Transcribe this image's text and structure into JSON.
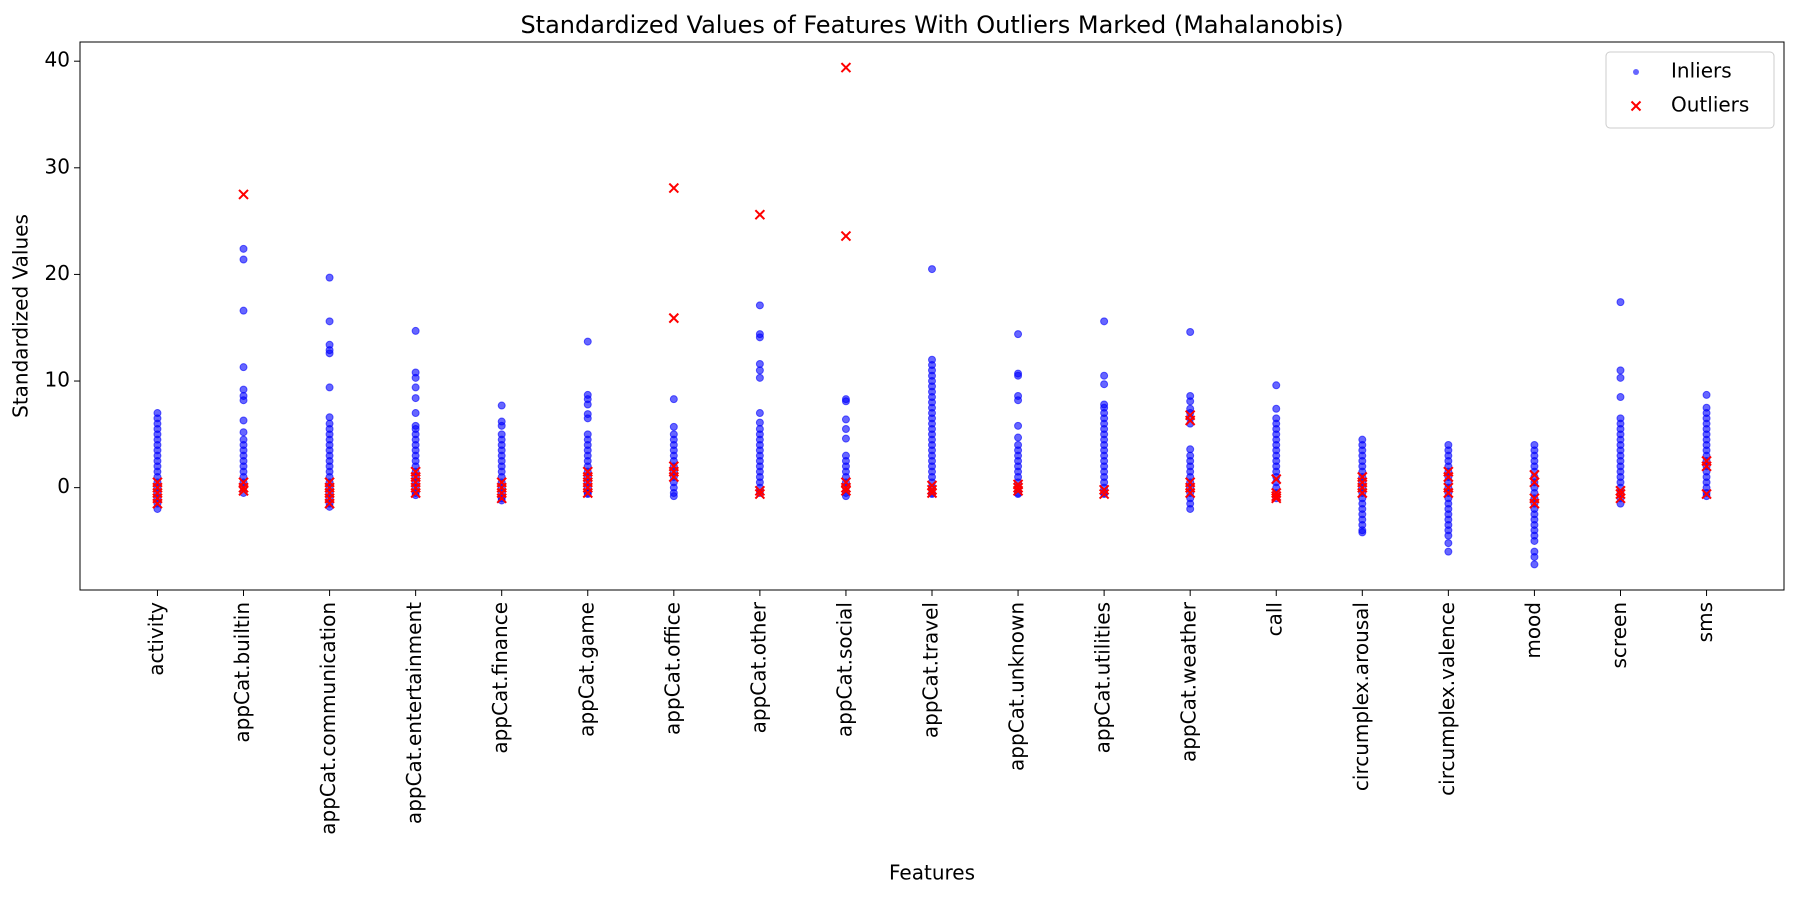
{
  "chart_data": {
    "type": "scatter",
    "title": "Standardized Values of Features With Outliers Marked (Mahalanobis)",
    "x_label": "Features",
    "y_label": "Standardized Values",
    "categories": [
      "activity",
      "appCat.builtin",
      "appCat.communication",
      "appCat.entertainment",
      "appCat.finance",
      "appCat.game",
      "appCat.office",
      "appCat.other",
      "appCat.social",
      "appCat.travel",
      "appCat.unknown",
      "appCat.utilities",
      "appCat.weather",
      "call",
      "circumplex.arousal",
      "circumplex.valence",
      "mood",
      "screen",
      "sms"
    ],
    "ylim": [
      -9.6,
      41.8
    ],
    "yticks": [
      0,
      10,
      20,
      30,
      40
    ],
    "legend": "upper right",
    "series": [
      {
        "name": "Inliers",
        "color": "blue",
        "marker": "circle",
        "values": [
          [
            -2,
            -1.5,
            -1,
            -0.5,
            0,
            0.5,
            1,
            1.5,
            2,
            2.5,
            3,
            3.5,
            4,
            4.5,
            5,
            5.5,
            6,
            6.5,
            7
          ],
          [
            -0.5,
            0,
            0.5,
            1,
            1.5,
            2,
            2.5,
            3,
            3.5,
            4,
            4.5,
            5.2,
            6.3,
            8.2,
            8.6,
            9.2,
            11.3,
            16.6,
            21.4,
            22.4
          ],
          [
            -1.8,
            -1.5,
            -1,
            -0.5,
            0,
            0.5,
            1,
            1.5,
            2,
            2.5,
            3,
            3.5,
            4,
            4.5,
            5,
            5.5,
            6,
            6.6,
            9.4,
            12.6,
            12.9,
            13.4,
            15.6,
            19.7
          ],
          [
            -0.7,
            -0.5,
            0,
            0.5,
            1,
            1.5,
            2,
            2.5,
            3,
            3.5,
            4,
            4.5,
            5,
            5.5,
            5.8,
            7,
            8.4,
            9.4,
            10.3,
            10.8,
            14.7
          ],
          [
            -1.2,
            -1,
            -0.5,
            0,
            0.5,
            1,
            1.5,
            2,
            2.5,
            3,
            3.5,
            4,
            4.5,
            5,
            5.8,
            6.2,
            7.7
          ],
          [
            -0.6,
            -0.5,
            0,
            0.5,
            1,
            1.5,
            2,
            2.5,
            3,
            3.5,
            4,
            4.5,
            5,
            6.5,
            6.9,
            7.8,
            8.3,
            8.7,
            13.7
          ],
          [
            -0.8,
            -0.5,
            0,
            0.5,
            1,
            1.5,
            2,
            2.5,
            3,
            3.5,
            4,
            4.5,
            5,
            5.7,
            8.3
          ],
          [
            -0.5,
            0,
            0.5,
            1,
            1.5,
            2,
            2.5,
            3,
            3.5,
            4,
            4.5,
            5,
            5.5,
            6.1,
            7,
            10.3,
            11,
            11.6,
            14.1,
            14.4,
            17.1
          ],
          [
            -0.8,
            -0.5,
            0,
            0.5,
            1,
            1.5,
            2,
            2.5,
            3,
            4.6,
            5.5,
            6.4,
            8.1,
            8.3
          ],
          [
            -0.6,
            -0.5,
            0,
            0.5,
            1,
            1.5,
            2,
            2.5,
            3,
            3.5,
            4,
            4.5,
            5,
            5.5,
            6,
            6.5,
            7,
            7.5,
            8,
            8.5,
            9,
            9.5,
            10,
            10.5,
            11,
            11.5,
            12,
            20.5
          ],
          [
            -0.6,
            -0.5,
            0,
            0.5,
            1,
            1.5,
            2,
            2.5,
            3,
            3.5,
            4,
            4.7,
            5.8,
            8.2,
            8.6,
            10.5,
            10.7,
            14.4
          ],
          [
            -0.6,
            -0.5,
            0,
            0.5,
            1,
            1.5,
            2,
            2.5,
            3,
            3.5,
            4,
            4.5,
            5,
            5.5,
            6,
            6.5,
            7,
            7.5,
            7.8,
            9.7,
            10.5,
            15.6
          ],
          [
            -2,
            -1.5,
            -1,
            -0.5,
            0,
            0.5,
            1,
            1.5,
            2,
            2.5,
            3,
            3.6,
            6,
            6.5,
            7,
            7.4,
            8.1,
            8.6,
            14.6
          ],
          [
            -1,
            -0.5,
            0,
            0.5,
            1,
            1.5,
            2,
            2.5,
            3,
            3.5,
            4,
            4.5,
            5,
            5.5,
            6,
            6.5,
            7.4,
            9.6
          ],
          [
            -4.2,
            -4,
            -3.5,
            -3,
            -2.5,
            -2,
            -1.5,
            -1,
            -0.5,
            0,
            0.5,
            1,
            1.5,
            2,
            2.5,
            3,
            3.5,
            4,
            4.5
          ],
          [
            -6,
            -5.2,
            -4.5,
            -4,
            -3.5,
            -3,
            -2.5,
            -2,
            -1.5,
            -1,
            -0.5,
            0,
            0.5,
            1,
            1.5,
            2,
            2.5,
            3,
            3.5,
            4
          ],
          [
            -7.2,
            -6.5,
            -6,
            -5,
            -4.5,
            -4,
            -3.5,
            -3,
            -2.5,
            -2,
            -1.5,
            -1,
            -0.5,
            0,
            0.5,
            1,
            1.5,
            2,
            2.5,
            3,
            3.5,
            4
          ],
          [
            -1.5,
            -1,
            -0.5,
            0,
            0.5,
            1,
            1.5,
            2,
            2.5,
            3,
            3.5,
            4,
            4.5,
            5,
            5.5,
            6,
            6.5,
            8.5,
            10.3,
            11,
            17.4
          ],
          [
            -0.8,
            -0.5,
            0,
            0.5,
            1,
            1.5,
            2,
            2.5,
            3,
            3.5,
            4,
            4.5,
            5,
            5.5,
            6,
            6.5,
            7,
            7.5,
            8.7
          ]
        ]
      },
      {
        "name": "Outliers",
        "color": "red",
        "marker": "x",
        "values": [
          [
            -1.5,
            -1,
            -0.5,
            0,
            0.5
          ],
          [
            27.5,
            0.5,
            0,
            -0.3
          ],
          [
            -1.5,
            -1,
            -0.5,
            0,
            0.5
          ],
          [
            -0.5,
            0,
            0.5,
            1,
            1.5
          ],
          [
            -1,
            -0.5,
            0,
            0.5
          ],
          [
            -0.5,
            0,
            0.5,
            1,
            1.5
          ],
          [
            28.1,
            15.9,
            2,
            1.5,
            1
          ],
          [
            25.6,
            -0.3,
            -0.6
          ],
          [
            39.4,
            23.6,
            0.5,
            0,
            -0.3
          ],
          [
            -0.5,
            -0.2,
            0.2
          ],
          [
            -0.3,
            0,
            0.3
          ],
          [
            -0.6,
            -0.2
          ],
          [
            6.8,
            6.3,
            0.5,
            0,
            -0.5
          ],
          [
            0.8,
            -0.5,
            -0.8,
            -1
          ],
          [
            1,
            0.5,
            0,
            -0.5
          ],
          [
            1.5,
            1,
            0,
            -0.5
          ],
          [
            1.2,
            0.5,
            -1,
            -1.5
          ],
          [
            -0.3,
            -0.6,
            -1
          ],
          [
            2.5,
            2,
            -0.6
          ]
        ]
      }
    ]
  }
}
